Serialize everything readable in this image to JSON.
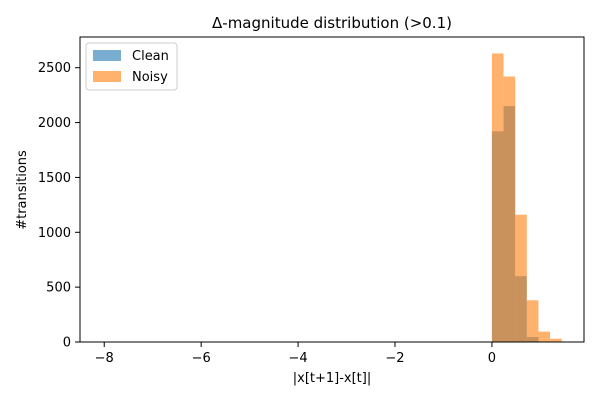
{
  "chart_data": {
    "type": "histogram",
    "title": "Δ-magnitude distribution (>0.1)",
    "xlabel": "|x[t+1]-x[t]|",
    "ylabel": "#transitions",
    "xlim": [
      -8.5,
      1.9
    ],
    "ylim": [
      0,
      2780
    ],
    "xticks": [
      -8,
      -6,
      -4,
      -2,
      0
    ],
    "xtick_labels": [
      "−8",
      "−6",
      "−4",
      "−2",
      "0"
    ],
    "yticks": [
      0,
      500,
      1000,
      1500,
      2000,
      2500
    ],
    "bin_width": 0.24,
    "grid": false,
    "legend_position": "top-left",
    "series": [
      {
        "name": "Clean",
        "color": "#1f77b4",
        "alpha": 0.6,
        "bins": [
          {
            "x0": 0.0,
            "x1": 0.24,
            "count": 1920
          },
          {
            "x0": 0.24,
            "x1": 0.48,
            "count": 2150
          },
          {
            "x0": 0.48,
            "x1": 0.72,
            "count": 600
          },
          {
            "x0": 0.72,
            "x1": 0.96,
            "count": 45
          },
          {
            "x0": 0.96,
            "x1": 1.2,
            "count": 5
          }
        ]
      },
      {
        "name": "Noisy",
        "color": "#ff7f0e",
        "alpha": 0.6,
        "bins": [
          {
            "x0": 0.0,
            "x1": 0.24,
            "count": 2630
          },
          {
            "x0": 0.24,
            "x1": 0.48,
            "count": 2420
          },
          {
            "x0": 0.48,
            "x1": 0.72,
            "count": 1160
          },
          {
            "x0": 0.72,
            "x1": 0.96,
            "count": 380
          },
          {
            "x0": 0.96,
            "x1": 1.2,
            "count": 95
          },
          {
            "x0": 1.2,
            "x1": 1.44,
            "count": 30
          }
        ]
      }
    ]
  }
}
